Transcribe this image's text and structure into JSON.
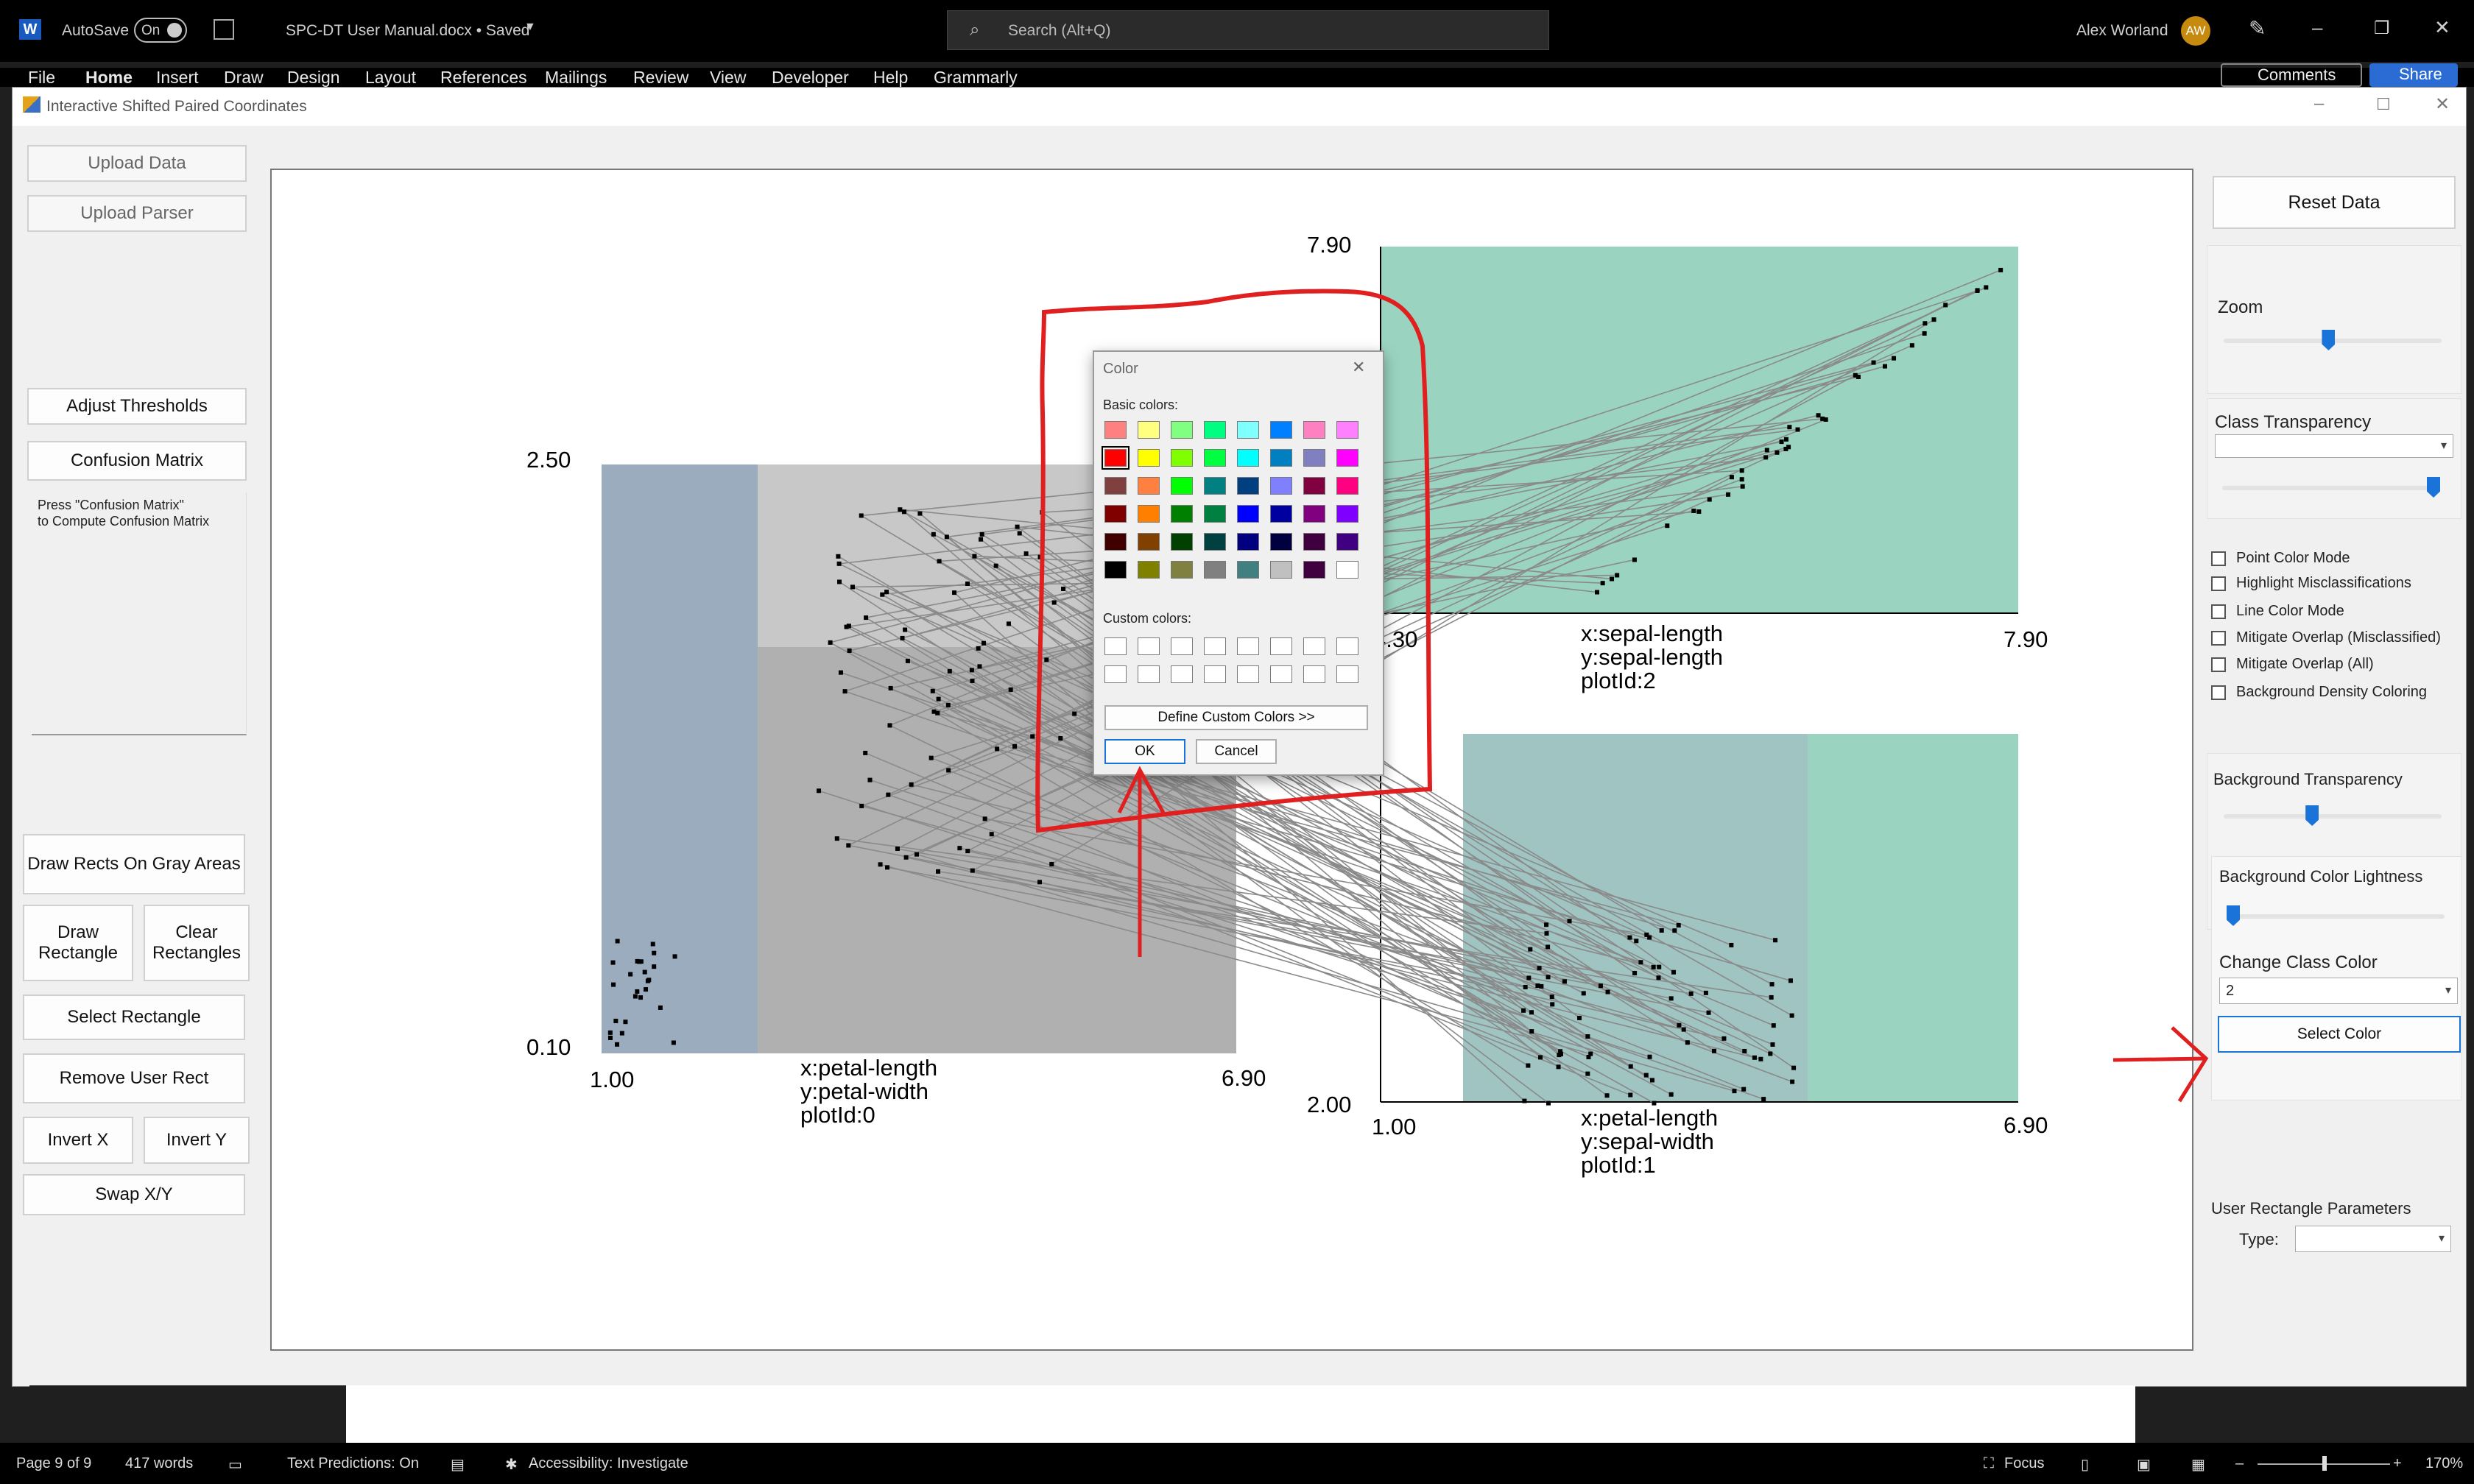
{
  "word": {
    "autosave_label": "AutoSave",
    "autosave_state": "On",
    "doc_title": "SPC-DT User Manual.docx • Saved",
    "search_placeholder": "Search (Alt+Q)",
    "user_name": "Alex Worland",
    "user_initials": "AW",
    "menu": [
      "File",
      "Home",
      "Insert",
      "Draw",
      "Design",
      "Layout",
      "References",
      "Mailings",
      "Review",
      "View",
      "Developer",
      "Help",
      "Grammarly"
    ],
    "comments_label": "Comments",
    "share_label": "Share"
  },
  "app": {
    "title": "Interactive Shifted Paired Coordinates",
    "left": {
      "upload_data": "Upload Data",
      "upload_parser": "Upload Parser",
      "adjust_thresholds": "Adjust Thresholds",
      "confusion_matrix": "Confusion Matrix",
      "confusion_text": "Press \"Confusion Matrix\"\nto Compute Confusion Matrix",
      "draw_rects_gray": "Draw Rects On Gray Areas",
      "draw_rectangle": "Draw Rectangle",
      "clear_rectangles": "Clear Rectangles",
      "select_rectangle": "Select Rectangle",
      "remove_user_rect": "Remove User Rect",
      "invert_x": "Invert X",
      "invert_y": "Invert Y",
      "swap_xy": "Swap X/Y"
    },
    "right": {
      "reset_data": "Reset Data",
      "zoom_label": "Zoom",
      "zoom_value": 0.48,
      "class_transparency_label": "Class Transparency",
      "class_transparency_value": 1.0,
      "checkboxes": [
        "Point Color Mode",
        "Highlight Misclassifications",
        "Line Color Mode",
        "Mitigate Overlap (Misclassified)",
        "Mitigate Overlap (All)",
        "Background Density Coloring"
      ],
      "bg_transparency_label": "Background Transparency",
      "bg_transparency_value": 0.4,
      "bg_lightness_label": "Background Color Lightness",
      "bg_lightness_value": 0.0,
      "change_class_color_label": "Change Class Color",
      "class_select_value": "2",
      "select_color_button": "Select Color",
      "user_rect_params_label": "User Rectangle Parameters",
      "type_label": "Type:"
    }
  },
  "chart_data": [
    {
      "type": "scatter",
      "plot_label": [
        "x:petal-length",
        "y:petal-width",
        "plotId:0"
      ],
      "xlim": [
        1.0,
        6.9
      ],
      "ylim": [
        0.1,
        2.5
      ],
      "xmin_label": "1.00",
      "xmax_label": "6.90",
      "ymin_label": "0.10",
      "ymax_label": "2.50"
    },
    {
      "type": "scatter",
      "plot_label": [
        "x:petal-length",
        "y:sepal-width",
        "plotId:1"
      ],
      "xlim": [
        1.0,
        6.9
      ],
      "ymin_label": "2.00",
      "xmin_label": "1.00",
      "xmax_label": "6.90"
    },
    {
      "type": "scatter",
      "plot_label": [
        "x:sepal-length",
        "y:sepal-length",
        "plotId:2"
      ],
      "ymax_label": "7.90",
      "xmin_label": "4.30",
      "xmax_label": "7.90"
    }
  ],
  "dialog": {
    "title": "Color",
    "basic_colors_label": "Basic colors:",
    "custom_colors_label": "Custom colors:",
    "define_custom": "Define Custom Colors >>",
    "ok": "OK",
    "cancel": "Cancel",
    "basic_colors": [
      [
        "#ff8080",
        "#ffff80",
        "#80ff80",
        "#00ff80",
        "#80ffff",
        "#0080ff",
        "#ff80c0",
        "#ff80ff"
      ],
      [
        "#ff0000",
        "#ffff00",
        "#80ff00",
        "#00ff40",
        "#00ffff",
        "#0080c0",
        "#8080c0",
        "#ff00ff"
      ],
      [
        "#804040",
        "#ff8040",
        "#00ff00",
        "#008080",
        "#004080",
        "#8080ff",
        "#800040",
        "#ff0080"
      ],
      [
        "#800000",
        "#ff8000",
        "#008000",
        "#008040",
        "#0000ff",
        "#0000a0",
        "#800080",
        "#8000ff"
      ],
      [
        "#400000",
        "#804000",
        "#004000",
        "#004040",
        "#000080",
        "#000040",
        "#400040",
        "#400080"
      ],
      [
        "#000000",
        "#808000",
        "#808040",
        "#808080",
        "#408080",
        "#c0c0c0",
        "#400040",
        "#ffffff"
      ]
    ]
  },
  "status": {
    "page": "Page 9 of 9",
    "words": "417 words",
    "text_predictions": "Text Predictions: On",
    "accessibility": "Accessibility: Investigate",
    "focus": "Focus",
    "zoom": "170%"
  }
}
